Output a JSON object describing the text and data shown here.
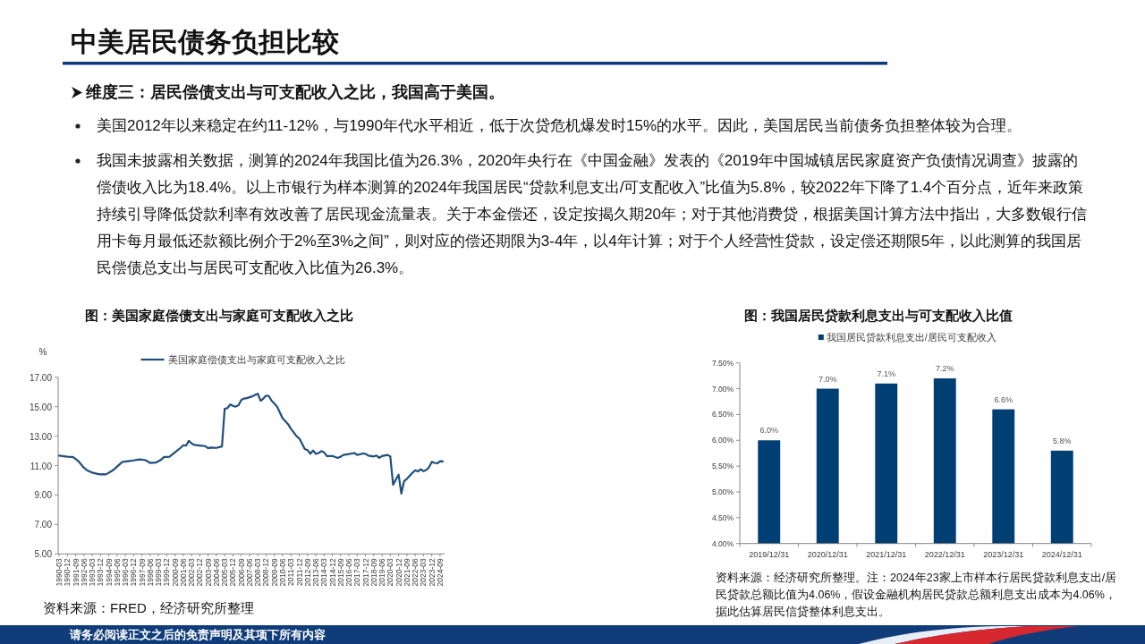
{
  "chart_data": [
    {
      "type": "other",
      "title": "中美居民债务负担比较",
      "annotations": [
        "维度三：居民偿债支出与可支配收入之比，我国高于美国。",
        "美国2012年以来稳定在约11-12%，与1990年代水平相近，低于次贷危机爆发时15%的水平。因此，美国居民当前债务负担整体较为合理。",
        "我国未披露相关数据，测算的2024年我国比值为26.3%，2020年央行在《中国金融》发表的《2019年中国城镇居民家庭资产负债情况调查》披露的偿债收入比为18.4%。以上市银行为样本测算的2024年我国居民“贷款利息支出/可支配收入”比值为5.8%，较2022年下降了1.4个百分点，近年来政策持续引导降低贷款利率有效改善了居民现金流量表。关于本金偿还，设定按揭久期20年；对于其他消费贷，根据美国计算方法中指出，大多数银行信用卡每月最低还款额比例介于2%至3%之间”，则对应的偿还期限为3-4年，以4年计算；对于个人经营性贷款，设定偿还期限5年，以此测算的我国居民偿债总支出与居民可支配收入比值为26.3%。",
        "请务必阅读正文之后的免责声明及其项下所有内容"
      ]
    },
    {
      "type": "line",
      "title": "图：美国家庭偿债支出与家庭可支配收入之比",
      "ylabel": "%",
      "legend": "top",
      "x": [
        "1990-03",
        "1990-12",
        "1991-06",
        "1991-09",
        "1991-12",
        "1992-03",
        "1992-06",
        "1992-09",
        "1993-03",
        "1993-09",
        "1993-12",
        "1994-03",
        "1994-06",
        "1994-12",
        "1995-03",
        "1995-09",
        "1995-12",
        "1996-06",
        "1996-12",
        "1997-06",
        "1997-12",
        "1998-03",
        "1998-06",
        "1998-12",
        "1999-06",
        "1999-09",
        "2000-03",
        "2000-06",
        "2000-09",
        "2001-03",
        "2001-06",
        "2001-09",
        "2001-12",
        "2002-03",
        "2002-06",
        "2002-12",
        "2003-06",
        "2003-09",
        "2003-12",
        "2004-06",
        "2004-12",
        "2005-03",
        "2005-06",
        "2005-09",
        "2005-12",
        "2006-03",
        "2006-06",
        "2006-09",
        "2006-12",
        "2007-03",
        "2007-09",
        "2007-12",
        "2008-03",
        "2008-06",
        "2008-09",
        "2008-12",
        "2009-03",
        "2009-06",
        "2009-09",
        "2009-12",
        "2010-03",
        "2010-06",
        "2010-09",
        "2010-12",
        "2011-03",
        "2011-06",
        "2011-09",
        "2011-12",
        "2012-03",
        "2012-06",
        "2012-09",
        "2012-12",
        "2013-03",
        "2013-06",
        "2013-09",
        "2013-12",
        "2014-03",
        "2014-06",
        "2014-12",
        "2015-06",
        "2015-09",
        "2015-12",
        "2016-06",
        "2016-12",
        "2017-03",
        "2017-09",
        "2017-12",
        "2018-03",
        "2018-09",
        "2018-12",
        "2019-03",
        "2019-06",
        "2019-12",
        "2020-03",
        "2020-06",
        "2020-09",
        "2020-12",
        "2021-03",
        "2021-06",
        "2021-09",
        "2021-12",
        "2022-03",
        "2022-06",
        "2022-09",
        "2022-12",
        "2023-03",
        "2023-06",
        "2023-09",
        "2023-12",
        "2024-03",
        "2024-06",
        "2024-09",
        "2024-12"
      ],
      "series": [
        {
          "name": "美国家庭偿债支出与家庭可支配收入之比",
          "color": "#1f4e7c",
          "values": [
            11.68,
            11.6,
            11.58,
            11.45,
            11.3,
            11.08,
            10.85,
            10.7,
            10.52,
            10.43,
            10.4,
            10.42,
            10.4,
            10.62,
            10.75,
            11.1,
            11.25,
            11.3,
            11.35,
            11.42,
            11.38,
            11.3,
            11.18,
            11.2,
            11.4,
            11.58,
            11.6,
            11.75,
            11.9,
            12.2,
            12.38,
            12.35,
            12.68,
            12.5,
            12.4,
            12.36,
            12.32,
            12.18,
            12.22,
            12.2,
            12.3,
            14.85,
            14.9,
            15.15,
            15.05,
            15.0,
            15.1,
            15.45,
            15.55,
            15.58,
            15.7,
            15.8,
            15.88,
            15.4,
            15.55,
            15.75,
            15.72,
            15.4,
            15.2,
            15.0,
            14.6,
            14.2,
            14.0,
            13.8,
            13.5,
            13.25,
            13.0,
            12.85,
            12.5,
            12.12,
            12.05,
            11.8,
            12.02,
            11.8,
            11.85,
            11.98,
            11.9,
            11.65,
            11.65,
            11.52,
            11.6,
            11.72,
            11.78,
            11.85,
            11.72,
            11.82,
            11.8,
            11.68,
            11.62,
            11.68,
            11.52,
            11.65,
            11.72,
            11.62,
            9.7,
            10.05,
            10.38,
            9.1,
            9.95,
            10.1,
            10.3,
            10.5,
            10.68,
            10.6,
            10.75,
            10.62,
            10.7,
            10.88,
            11.25,
            11.18,
            11.15,
            11.3,
            11.28
          ]
        }
      ],
      "xlim": [
        "1990-03",
        "2024-12"
      ],
      "xticks": [
        "1990-03",
        "1990-12",
        "1991-09",
        "1992-06",
        "1993-03",
        "1993-12",
        "1994-09",
        "1995-06",
        "1996-03",
        "1996-12",
        "1997-09",
        "1998-06",
        "1999-03",
        "1999-12",
        "2000-09",
        "2001-06",
        "2002-03",
        "2002-12",
        "2003-09",
        "2004-06",
        "2005-03",
        "2005-12",
        "2006-09",
        "2007-06",
        "2008-03",
        "2008-12",
        "2009-09",
        "2010-06",
        "2011-03",
        "2011-12",
        "2012-09",
        "2013-06",
        "2014-03",
        "2014-12",
        "2015-09",
        "2016-06",
        "2017-03",
        "2017-12",
        "2018-09",
        "2019-06",
        "2020-03",
        "2020-12",
        "2021-09",
        "2022-06",
        "2023-03",
        "2023-12",
        "2024-09"
      ],
      "ylim": [
        5,
        17
      ],
      "yticks": [
        {
          "value": 5,
          "label": "5.00"
        },
        {
          "value": 7,
          "label": "7.00"
        },
        {
          "value": 9,
          "label": "9.00"
        },
        {
          "value": 11,
          "label": "11.00"
        },
        {
          "value": 13,
          "label": "13.00"
        },
        {
          "value": 15,
          "label": "15.00"
        },
        {
          "value": 17,
          "label": "17.00"
        }
      ],
      "annotations": [
        "资料来源：FRED，经济研究所整理"
      ]
    },
    {
      "type": "bar",
      "title": "图：我国居民贷款利息支出与可支配收入比值",
      "legend": "top",
      "categories": [
        "2019/12/31",
        "2020/12/31",
        "2021/12/31",
        "2022/12/31",
        "2023/12/31",
        "2024/12/31"
      ],
      "series": [
        {
          "name": "我国居民贷款利息支出/居民可支配收入",
          "color": "#003f74",
          "values": [
            6.0,
            7.0,
            7.1,
            7.2,
            6.6,
            5.8
          ],
          "value_labels": [
            "6.0%",
            "7.0%",
            "7.1%",
            "7.2%",
            "6.6%",
            "5.8%"
          ]
        }
      ],
      "ylim": [
        4,
        7.5
      ],
      "yticks": [
        {
          "value": 4,
          "label": "4.00%"
        },
        {
          "value": 4.5,
          "label": "4.50%"
        },
        {
          "value": 5,
          "label": "5.00%"
        },
        {
          "value": 5.5,
          "label": "5.50%"
        },
        {
          "value": 6,
          "label": "6.00%"
        },
        {
          "value": 6.5,
          "label": "6.50%"
        },
        {
          "value": 7,
          "label": "7.00%"
        },
        {
          "value": 7.5,
          "label": "7.50%"
        }
      ],
      "annotations": [
        "资料来源：经济研究所整理。注：2024年23家上市样本行居民贷款利息支出/居民贷款总额比值为4.06%，假设金融机构居民贷款总额利息支出成本为4.06%，据此估算居民信贷整体利息支出。"
      ]
    }
  ]
}
